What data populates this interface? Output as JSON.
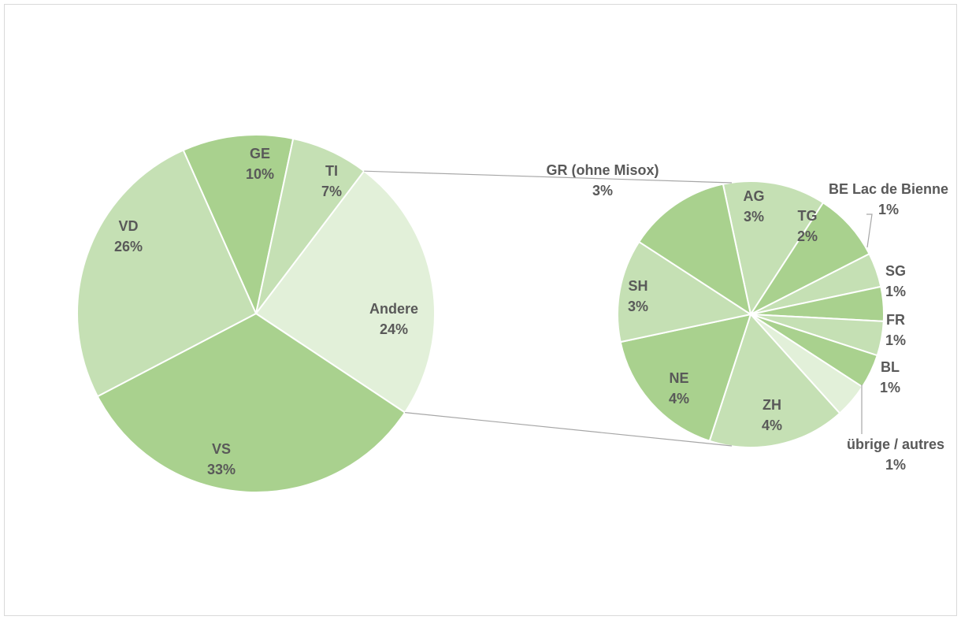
{
  "chart_data": {
    "type": "pie",
    "subtype": "pie-of-pie",
    "colors": {
      "medium": "#a9d18e",
      "light": "#c5e0b4",
      "lighter": "#e2f0d9",
      "edge": "#ffffff",
      "connector": "#a6a6a6",
      "label": "#595959"
    },
    "main": {
      "slices": [
        {
          "label": "GE",
          "pct": "10%",
          "value": 10,
          "color": "#a9d18e"
        },
        {
          "label": "TI",
          "pct": "7%",
          "value": 7,
          "color": "#c5e0b4"
        },
        {
          "label": "Andere",
          "pct": "24%",
          "value": 24,
          "color": "#e2f0d9"
        },
        {
          "label": "VS",
          "pct": "33%",
          "value": 33,
          "color": "#a9d18e"
        },
        {
          "label": "VD",
          "pct": "26%",
          "value": 26,
          "color": "#c5e0b4"
        }
      ]
    },
    "secondary": {
      "parent": "Andere",
      "slices": [
        {
          "label": "AG",
          "pct": "3%",
          "value": 3,
          "color": "#c5e0b4"
        },
        {
          "label": "TG",
          "pct": "2%",
          "value": 2,
          "color": "#a9d18e"
        },
        {
          "label": "BE Lac de Bienne",
          "pct": "1%",
          "value": 1,
          "color": "#c5e0b4"
        },
        {
          "label": "SG",
          "pct": "1%",
          "value": 1,
          "color": "#a9d18e"
        },
        {
          "label": "FR",
          "pct": "1%",
          "value": 1,
          "color": "#c5e0b4"
        },
        {
          "label": "BL",
          "pct": "1%",
          "value": 1,
          "color": "#a9d18e"
        },
        {
          "label": "übrige / autres",
          "pct": "1%",
          "value": 1,
          "color": "#e2f0d9"
        },
        {
          "label": "ZH",
          "pct": "4%",
          "value": 4,
          "color": "#c5e0b4"
        },
        {
          "label": "NE",
          "pct": "4%",
          "value": 4,
          "color": "#a9d18e"
        },
        {
          "label": "SH",
          "pct": "3%",
          "value": 3,
          "color": "#c5e0b4"
        },
        {
          "label": "GR (ohne Misox)",
          "pct": "3%",
          "value": 3,
          "color": "#a9d18e"
        }
      ]
    }
  }
}
